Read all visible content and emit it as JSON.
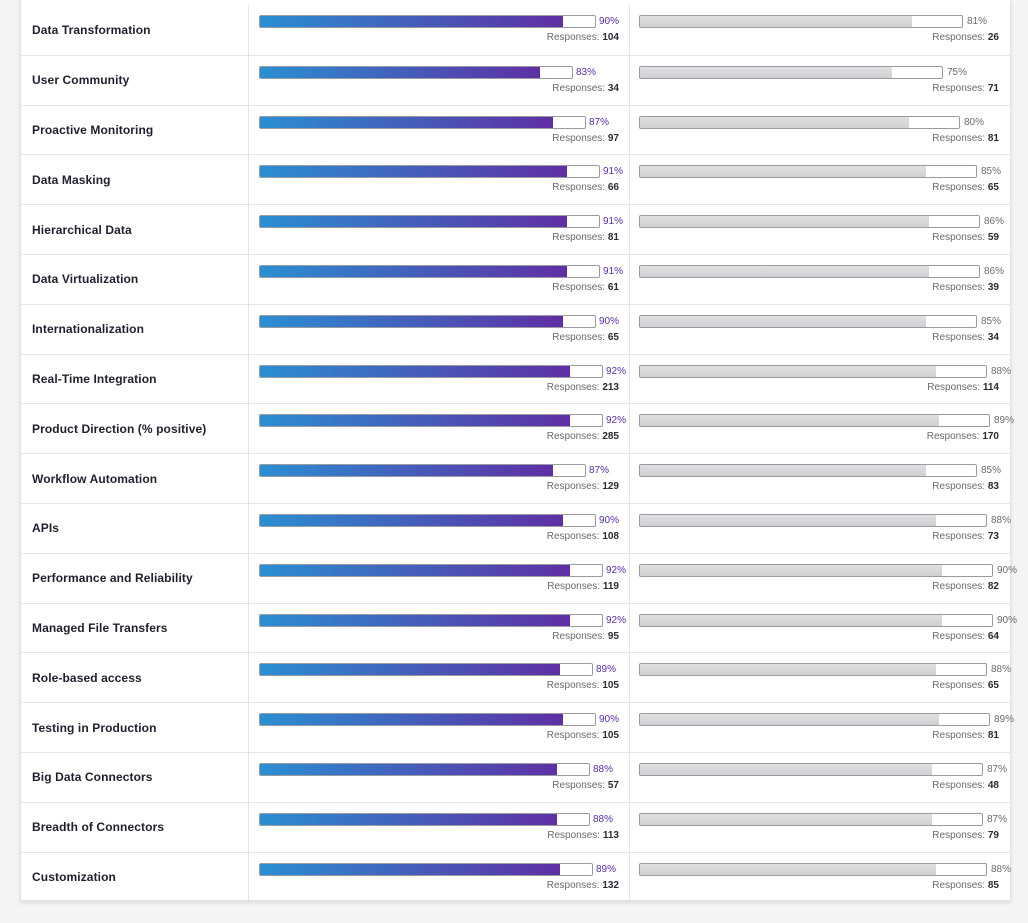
{
  "colors": {
    "gradient_start": "#2a8fd2",
    "gradient_end": "#5f2fa3",
    "bar_b": "#d6d6d9",
    "pct_a_text": "#5a2ca6",
    "pct_b_text": "#6a6a72"
  },
  "responses_label": "Responses:",
  "rows": [
    {
      "label": "Data Transformation",
      "a_pct": 90,
      "a_pct_text": "90%",
      "a_resp": "104",
      "b_pct": 81,
      "b_pct_text": "81%",
      "b_resp": "26"
    },
    {
      "label": "User Community",
      "a_pct": 83,
      "a_pct_text": "83%",
      "a_resp": "34",
      "b_pct": 75,
      "b_pct_text": "75%",
      "b_resp": "71"
    },
    {
      "label": "Proactive Monitoring",
      "a_pct": 87,
      "a_pct_text": "87%",
      "a_resp": "97",
      "b_pct": 80,
      "b_pct_text": "80%",
      "b_resp": "81"
    },
    {
      "label": "Data Masking",
      "a_pct": 91,
      "a_pct_text": "91%",
      "a_resp": "66",
      "b_pct": 85,
      "b_pct_text": "85%",
      "b_resp": "65"
    },
    {
      "label": "Hierarchical Data",
      "a_pct": 91,
      "a_pct_text": "91%",
      "a_resp": "81",
      "b_pct": 86,
      "b_pct_text": "86%",
      "b_resp": "59"
    },
    {
      "label": "Data Virtualization",
      "a_pct": 91,
      "a_pct_text": "91%",
      "a_resp": "61",
      "b_pct": 86,
      "b_pct_text": "86%",
      "b_resp": "39"
    },
    {
      "label": "Internationalization",
      "a_pct": 90,
      "a_pct_text": "90%",
      "a_resp": "65",
      "b_pct": 85,
      "b_pct_text": "85%",
      "b_resp": "34"
    },
    {
      "label": "Real-Time Integration",
      "a_pct": 92,
      "a_pct_text": "92%",
      "a_resp": "213",
      "b_pct": 88,
      "b_pct_text": "88%",
      "b_resp": "114"
    },
    {
      "label": "Product Direction (% positive)",
      "a_pct": 92,
      "a_pct_text": "92%",
      "a_resp": "285",
      "b_pct": 89,
      "b_pct_text": "89%",
      "b_resp": "170"
    },
    {
      "label": "Workflow Automation",
      "a_pct": 87,
      "a_pct_text": "87%",
      "a_resp": "129",
      "b_pct": 85,
      "b_pct_text": "85%",
      "b_resp": "83"
    },
    {
      "label": "APIs",
      "a_pct": 90,
      "a_pct_text": "90%",
      "a_resp": "108",
      "b_pct": 88,
      "b_pct_text": "88%",
      "b_resp": "73"
    },
    {
      "label": "Performance and Reliability",
      "a_pct": 92,
      "a_pct_text": "92%",
      "a_resp": "119",
      "b_pct": 90,
      "b_pct_text": "90%",
      "b_resp": "82"
    },
    {
      "label": "Managed File Transfers",
      "a_pct": 92,
      "a_pct_text": "92%",
      "a_resp": "95",
      "b_pct": 90,
      "b_pct_text": "90%",
      "b_resp": "64"
    },
    {
      "label": "Role-based access",
      "a_pct": 89,
      "a_pct_text": "89%",
      "a_resp": "105",
      "b_pct": 88,
      "b_pct_text": "88%",
      "b_resp": "65"
    },
    {
      "label": "Testing in Production",
      "a_pct": 90,
      "a_pct_text": "90%",
      "a_resp": "105",
      "b_pct": 89,
      "b_pct_text": "89%",
      "b_resp": "81"
    },
    {
      "label": "Big Data Connectors",
      "a_pct": 88,
      "a_pct_text": "88%",
      "a_resp": "57",
      "b_pct": 87,
      "b_pct_text": "87%",
      "b_resp": "48"
    },
    {
      "label": "Breadth of Connectors",
      "a_pct": 88,
      "a_pct_text": "88%",
      "a_resp": "113",
      "b_pct": 87,
      "b_pct_text": "87%",
      "b_resp": "79"
    },
    {
      "label": "Customization",
      "a_pct": 89,
      "a_pct_text": "89%",
      "a_resp": "132",
      "b_pct": 88,
      "b_pct_text": "88%",
      "b_resp": "85"
    }
  ]
}
